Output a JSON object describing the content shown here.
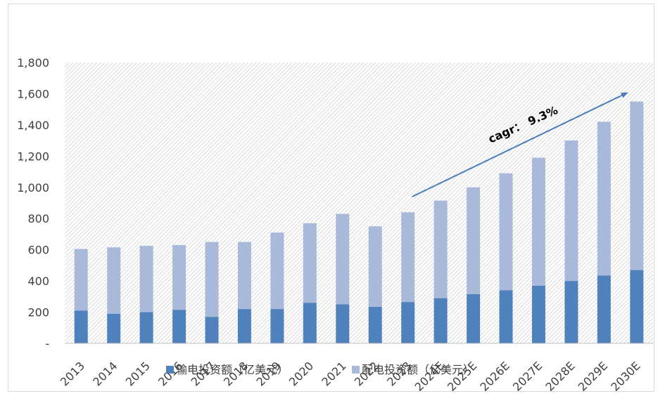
{
  "chart_data": {
    "type": "bar",
    "stacked": true,
    "categories": [
      "2013",
      "2014",
      "2015",
      "2016",
      "2017",
      "2018",
      "2019",
      "2020",
      "2021",
      "2022",
      "2023",
      "2024E",
      "2025E",
      "2026E",
      "2027E",
      "2028E",
      "2029E",
      "2030E"
    ],
    "series": [
      {
        "name": "输电投资额（亿美元）",
        "color": "#4f81bd",
        "values": [
          210,
          190,
          200,
          215,
          170,
          220,
          220,
          260,
          250,
          235,
          265,
          290,
          315,
          340,
          370,
          400,
          435,
          470
        ]
      },
      {
        "name": "配电投资额（亿美元）",
        "color": "#a9b9d9",
        "values": [
          395,
          425,
          425,
          415,
          480,
          430,
          490,
          510,
          580,
          515,
          575,
          625,
          685,
          750,
          820,
          900,
          985,
          1080
        ]
      }
    ],
    "ylim": [
      0,
      1800
    ],
    "yticks": [
      0,
      200,
      400,
      600,
      800,
      1000,
      1200,
      1400,
      1600,
      1800
    ],
    "ytick_labels": [
      "-",
      "200",
      "400",
      "600",
      "800",
      "1,000",
      "1,200",
      "1,400",
      "1,600",
      "1,800"
    ],
    "grid": false,
    "legend_position": "bottom",
    "annotation": {
      "label": "cagr：",
      "value": "9.3%",
      "arrow_from_category": "2023",
      "arrow_to_category": "2030E"
    },
    "title": "",
    "xlabel": "",
    "ylabel": ""
  }
}
